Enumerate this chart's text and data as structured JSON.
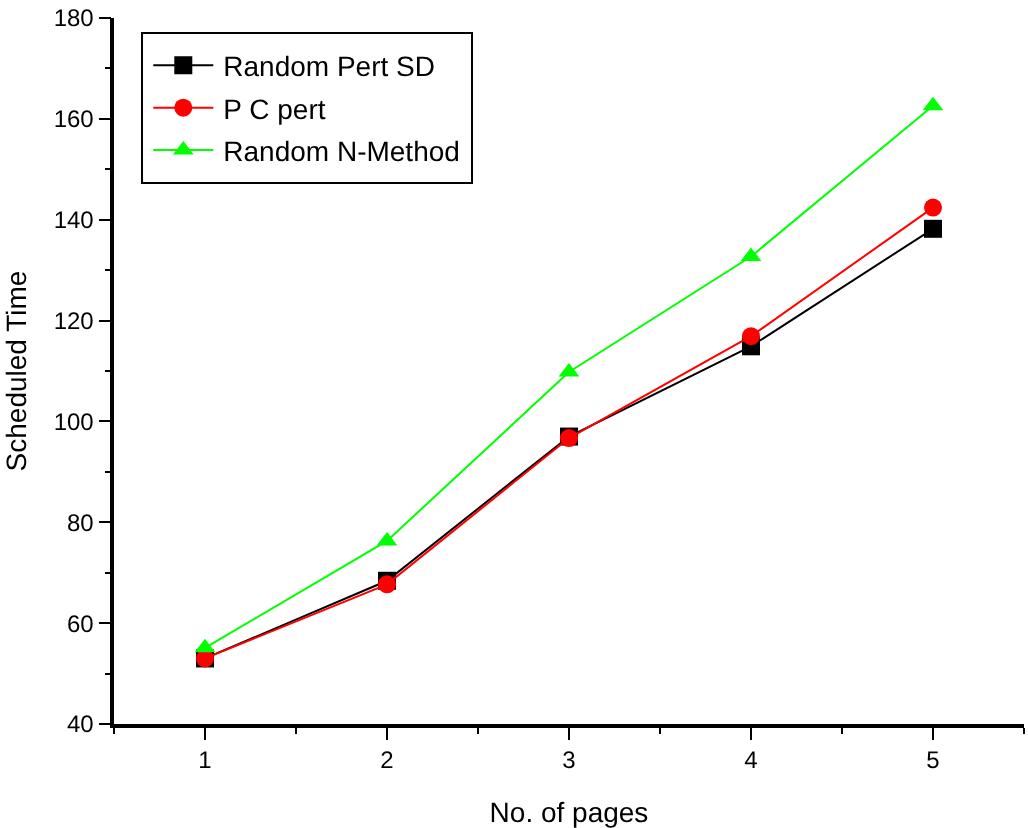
{
  "chart_data": {
    "type": "line",
    "xlabel": "No. of pages",
    "ylabel": "Scheduled Time",
    "x": [
      1,
      2,
      3,
      4,
      5
    ],
    "series": [
      {
        "name": "Random Pert SD",
        "color": "#000000",
        "marker": "square",
        "values": [
          53,
          68.4,
          97,
          114.9,
          138.2
        ]
      },
      {
        "name": "P C pert",
        "color": "#ff0000",
        "marker": "circle",
        "values": [
          53,
          67.7,
          96.7,
          116.9,
          142.4
        ]
      },
      {
        "name": "Random N-Method",
        "color": "#00ff00",
        "marker": "triangle",
        "values": [
          55.1,
          76.3,
          109.8,
          132.7,
          162.6
        ]
      }
    ],
    "xlim": [
      0.5,
      5.5
    ],
    "xticks": [
      1,
      2,
      3,
      4,
      5
    ],
    "ylim": [
      40,
      180
    ],
    "yticks": [
      40,
      60,
      80,
      100,
      120,
      140,
      160,
      180
    ],
    "legend": "top left",
    "line_style": "solid"
  }
}
